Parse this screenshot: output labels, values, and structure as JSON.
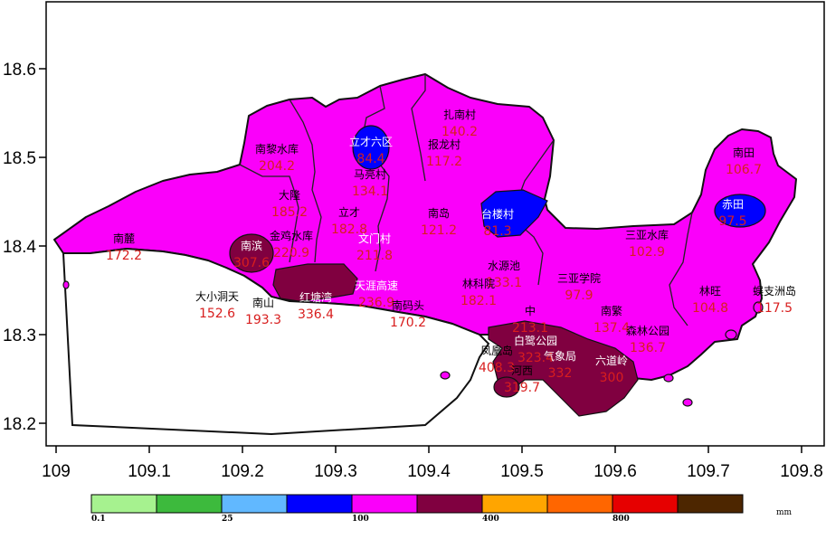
{
  "map": {
    "x_ticks": [
      "109",
      "109.1",
      "109.2",
      "109.3",
      "109.4",
      "109.5",
      "109.6",
      "109.7",
      "109.8"
    ],
    "y_ticks": [
      "18.6",
      "18.5",
      "18.4",
      "18.3",
      "18.2"
    ]
  },
  "stations": [
    {
      "name": "扎南村",
      "value": "140.2",
      "name_color": "#000000"
    },
    {
      "name": "南黎水库",
      "value": "204.2",
      "name_color": "#000000"
    },
    {
      "name": "立才六区",
      "value": "84.4",
      "name_color": "#ffffff"
    },
    {
      "name": "报龙村",
      "value": "117.2",
      "name_color": "#000000"
    },
    {
      "name": "马亮村",
      "value": "134.1",
      "name_color": "#000000"
    },
    {
      "name": "南田",
      "value": "106.7",
      "name_color": "#000000"
    },
    {
      "name": "大隆",
      "value": "185.2",
      "name_color": "#000000"
    },
    {
      "name": "立才",
      "value": "182.8",
      "name_color": "#000000"
    },
    {
      "name": "南岛",
      "value": "121.2",
      "name_color": "#000000"
    },
    {
      "name": "台楼村",
      "value": "81.3",
      "name_color": "#ffffff"
    },
    {
      "name": "赤田",
      "value": "97.5",
      "name_color": "#ffffff"
    },
    {
      "name": "南麓",
      "value": "172.2",
      "name_color": "#000000"
    },
    {
      "name": "南滨",
      "value": "307.6",
      "name_color": "#ffffff"
    },
    {
      "name": "金鸡水库",
      "value": "220.9",
      "name_color": "#000000"
    },
    {
      "name": "文门村",
      "value": "211.8",
      "name_color": "#ffffff"
    },
    {
      "name": "三亚水库",
      "value": "102.9",
      "name_color": "#000000"
    },
    {
      "name": "水源池",
      "value": "133.1",
      "name_color": "#000000"
    },
    {
      "name": "三亚学院",
      "value": "97.9",
      "name_color": "#000000"
    },
    {
      "name": "林科院",
      "value": "182.1",
      "name_color": "#000000"
    },
    {
      "name": "林旺",
      "value": "104.8",
      "name_color": "#000000"
    },
    {
      "name": "蜈支洲岛",
      "value": "117.5",
      "name_color": "#000000"
    },
    {
      "name": "大小洞天",
      "value": "152.6",
      "name_color": "#000000"
    },
    {
      "name": "南山",
      "value": "193.3",
      "name_color": "#000000"
    },
    {
      "name": "红塘湾",
      "value": "336.4",
      "name_color": "#ffffff"
    },
    {
      "name": "天涯高速",
      "value": "236.9",
      "name_color": "#ffffff"
    },
    {
      "name": "南码头",
      "value": "170.2",
      "name_color": "#000000"
    },
    {
      "name": "南繁",
      "value": "137.4",
      "name_color": "#000000"
    },
    {
      "name": "中",
      "value": "213.1",
      "name_color": "#000000"
    },
    {
      "name": "白鹭公园",
      "value": "323.4",
      "name_color": "#ffffff"
    },
    {
      "name": "森林公园",
      "value": "136.7",
      "name_color": "#000000"
    },
    {
      "name": "凤凰岛",
      "value": "408.3",
      "name_color": "#000000"
    },
    {
      "name": "河西",
      "value": "319.7",
      "name_color": "#000000"
    },
    {
      "name": "气象局",
      "value": "332",
      "name_color": "#ffffff"
    },
    {
      "name": "六道岭",
      "value": "300",
      "name_color": "#ffffff"
    }
  ],
  "legend": {
    "colors": [
      "#a6f28f",
      "#3dba3d",
      "#61b8ff",
      "#0000ff",
      "#fa00fa",
      "#800040",
      "#ffa500",
      "#ff6600",
      "#e60000",
      "#4d2600"
    ],
    "labels": [
      "0.1",
      "25",
      "100",
      "400",
      "800"
    ],
    "unit": "mm"
  }
}
